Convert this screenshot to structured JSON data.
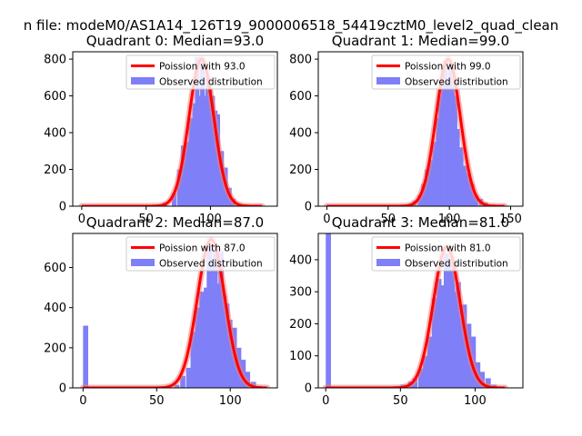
{
  "figure": {
    "suptitle": "n file: modeM0/AS1A14_126T19_9000006518_54419cztM0_level2_quad_clean"
  },
  "colors": {
    "hist": "#7f7ff8",
    "curve": "#ff0000",
    "curve_halo": "#f08080",
    "frame": "#000000"
  },
  "chart_data": [
    {
      "type": "bar",
      "title": "Quadrant 0: Median=93.0",
      "xlim": [
        -7,
        152
      ],
      "ylim": [
        0,
        840
      ],
      "xticks": [
        0,
        50,
        100
      ],
      "yticks": [
        0,
        200,
        400,
        600,
        800
      ],
      "legend": {
        "position": "top-right",
        "curve_label": "Poission with 93.0",
        "hist_label": "Observed distribution"
      },
      "mean": 93,
      "peak": 800,
      "sigma": 9.64,
      "curve_range": [
        0,
        140
      ],
      "bin_width": 3.5,
      "bins_x": [
        0,
        45,
        55,
        63,
        70,
        74,
        77,
        80,
        83,
        86,
        88,
        90,
        92,
        94,
        96,
        98,
        100,
        102,
        104,
        107,
        110,
        113,
        116,
        120
      ],
      "bins_y": [
        5,
        3,
        6,
        20,
        70,
        200,
        330,
        350,
        480,
        560,
        810,
        600,
        810,
        600,
        700,
        640,
        600,
        520,
        500,
        300,
        210,
        100,
        40,
        10
      ]
    },
    {
      "type": "bar",
      "title": "Quadrant 1: Median=99.0",
      "xlim": [
        -7,
        160
      ],
      "ylim": [
        0,
        840
      ],
      "xticks": [
        0,
        50,
        100,
        150
      ],
      "yticks": [
        0,
        200,
        400,
        600,
        800
      ],
      "legend": {
        "position": "top-right",
        "curve_label": "Poission with 99.0",
        "hist_label": "Observed distribution"
      },
      "mean": 99,
      "peak": 800,
      "sigma": 9.95,
      "curve_range": [
        0,
        145
      ],
      "bin_width": 3.5,
      "bins_x": [
        0,
        60,
        66,
        70,
        74,
        77,
        80,
        83,
        86,
        89,
        91,
        93,
        95,
        97,
        99,
        101,
        103,
        105,
        108,
        111,
        114,
        117,
        120,
        124,
        128
      ],
      "bins_y": [
        3,
        4,
        10,
        30,
        60,
        120,
        200,
        250,
        350,
        480,
        600,
        740,
        790,
        660,
        760,
        700,
        600,
        420,
        320,
        220,
        180,
        120,
        60,
        40,
        20
      ]
    },
    {
      "type": "bar",
      "title": "Quadrant 2: Median=87.0",
      "xlim": [
        -7,
        132
      ],
      "ylim": [
        0,
        770
      ],
      "xticks": [
        0,
        50,
        100
      ],
      "yticks": [
        0,
        200,
        400,
        600
      ],
      "legend": {
        "position": "top-right",
        "curve_label": "Poission with 87.0",
        "hist_label": "Observed distribution"
      },
      "mean": 87,
      "peak": 740,
      "sigma": 9.33,
      "curve_range": [
        0,
        125
      ],
      "bin_width": 3.5,
      "bins_x": [
        0,
        45,
        55,
        62,
        66,
        70,
        73,
        76,
        79,
        82,
        84,
        86,
        88,
        90,
        92,
        94,
        96,
        98,
        101,
        104,
        107,
        110,
        114,
        118
      ],
      "bins_y": [
        310,
        3,
        5,
        15,
        60,
        100,
        280,
        400,
        480,
        500,
        720,
        600,
        700,
        520,
        680,
        460,
        420,
        340,
        300,
        200,
        140,
        80,
        30,
        10
      ]
    },
    {
      "type": "bar",
      "title": "Quadrant 3: Median=81.0",
      "xlim": [
        -5,
        132
      ],
      "ylim": [
        0,
        482
      ],
      "xticks": [
        0,
        50,
        100
      ],
      "yticks": [
        0,
        100,
        200,
        300,
        400
      ],
      "legend": {
        "position": "top-right",
        "curve_label": "Poission with 81.0",
        "hist_label": "Observed distribution"
      },
      "mean": 81,
      "peak": 440,
      "sigma": 9.0,
      "curve_range": [
        0,
        120
      ],
      "bin_width": 3.5,
      "bins_x": [
        0,
        45,
        50,
        55,
        58,
        62,
        65,
        68,
        71,
        74,
        77,
        79,
        81,
        83,
        85,
        87,
        89,
        91,
        94,
        97,
        100,
        103,
        107,
        111
      ],
      "bins_y": [
        482,
        5,
        10,
        20,
        30,
        60,
        100,
        160,
        280,
        340,
        320,
        420,
        380,
        400,
        300,
        330,
        220,
        260,
        200,
        160,
        80,
        50,
        30,
        10
      ]
    }
  ]
}
